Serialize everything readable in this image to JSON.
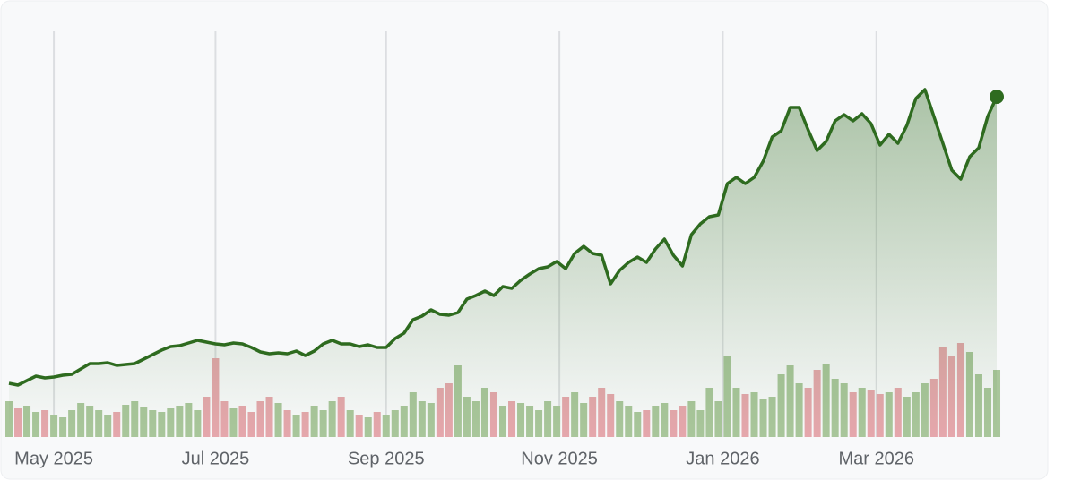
{
  "chart_data": {
    "type": "line",
    "color": "#2e6b1f",
    "values": [
      72,
      70,
      75,
      80,
      78,
      79,
      81,
      82,
      88,
      94,
      94,
      95,
      92,
      93,
      94,
      99,
      104,
      109,
      113,
      114,
      117,
      120,
      118,
      116,
      115,
      117,
      116,
      112,
      107,
      105,
      106,
      105,
      108,
      103,
      108,
      116,
      120,
      116,
      116,
      113,
      115,
      112,
      112,
      122,
      128,
      143,
      147,
      154,
      149,
      148,
      151,
      166,
      170,
      175,
      170,
      180,
      178,
      187,
      194,
      200,
      202,
      208,
      200,
      217,
      225,
      217,
      215,
      183,
      198,
      207,
      213,
      207,
      222,
      233,
      215,
      203,
      238,
      250,
      258,
      260,
      295,
      302,
      295,
      302,
      320,
      347,
      354,
      380,
      380,
      355,
      332,
      342,
      365,
      372,
      365,
      373,
      362,
      338,
      350,
      340,
      360,
      390,
      400,
      370,
      340,
      310,
      300,
      325,
      335,
      370,
      392
    ],
    "ylim": [
      0,
      500
    ],
    "volume": {
      "values": [
        40,
        32,
        35,
        28,
        30,
        25,
        22,
        30,
        38,
        35,
        30,
        25,
        28,
        36,
        40,
        33,
        30,
        28,
        32,
        35,
        38,
        30,
        45,
        88,
        40,
        32,
        35,
        28,
        40,
        45,
        38,
        30,
        25,
        28,
        35,
        30,
        40,
        45,
        30,
        25,
        22,
        28,
        25,
        30,
        35,
        50,
        40,
        38,
        55,
        60,
        80,
        45,
        40,
        55,
        50,
        35,
        40,
        38,
        35,
        30,
        40,
        35,
        45,
        50,
        38,
        45,
        55,
        48,
        40,
        35,
        28,
        30,
        35,
        38,
        30,
        35,
        40,
        30,
        55,
        40,
        90,
        55,
        48,
        50,
        42,
        45,
        70,
        80,
        60,
        55,
        75,
        82,
        65,
        60,
        50,
        55,
        52,
        48,
        50,
        55,
        45,
        50,
        60,
        65,
        100,
        90,
        105,
        95,
        70,
        55,
        75
      ],
      "up_color": "#a9c69b",
      "down_color": "#e5a7ac",
      "ylim": [
        0,
        110
      ]
    },
    "xlim": [
      0,
      110
    ],
    "xticks": [
      {
        "value": 5,
        "label": "May 2025"
      },
      {
        "value": 23,
        "label": "Jul 2025"
      },
      {
        "value": 42,
        "label": "Sep 2025"
      },
      {
        "value": 61.3,
        "label": "Nov 2025"
      },
      {
        "value": 79.5,
        "label": "Jan 2026"
      },
      {
        "value": 96.6,
        "label": "Mar 2026"
      }
    ],
    "grid": true
  }
}
